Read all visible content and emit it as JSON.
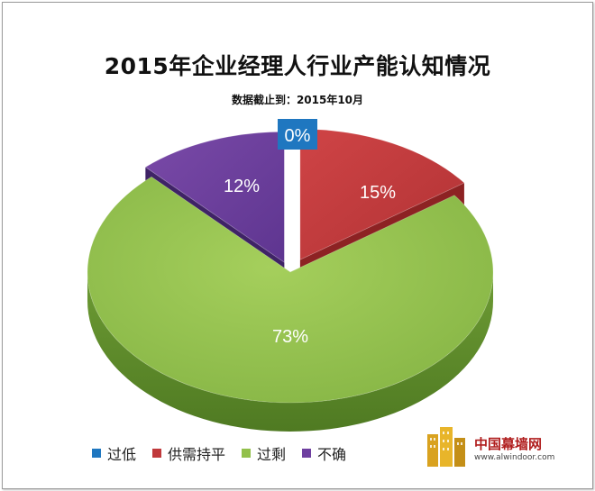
{
  "chart_data": {
    "type": "pie",
    "title": "2015年企业经理人行业产能认知情况",
    "subtitle": "数据截止到：2015年10月",
    "slices": [
      {
        "label": "过低",
        "value": 0,
        "display": "0%",
        "color": "#1f77c0"
      },
      {
        "label": "供需持平",
        "value": 15,
        "display": "15%",
        "color": "#c0393b"
      },
      {
        "label": "过剩",
        "value": 73,
        "display": "73%",
        "color": "#92c04b"
      },
      {
        "label": "不确",
        "value": 12,
        "display": "12%",
        "color": "#6e3fa0"
      }
    ],
    "legend_position": "bottom"
  },
  "watermark": {
    "text": "中国幕墙网",
    "url": "www.alwindoor.com"
  }
}
